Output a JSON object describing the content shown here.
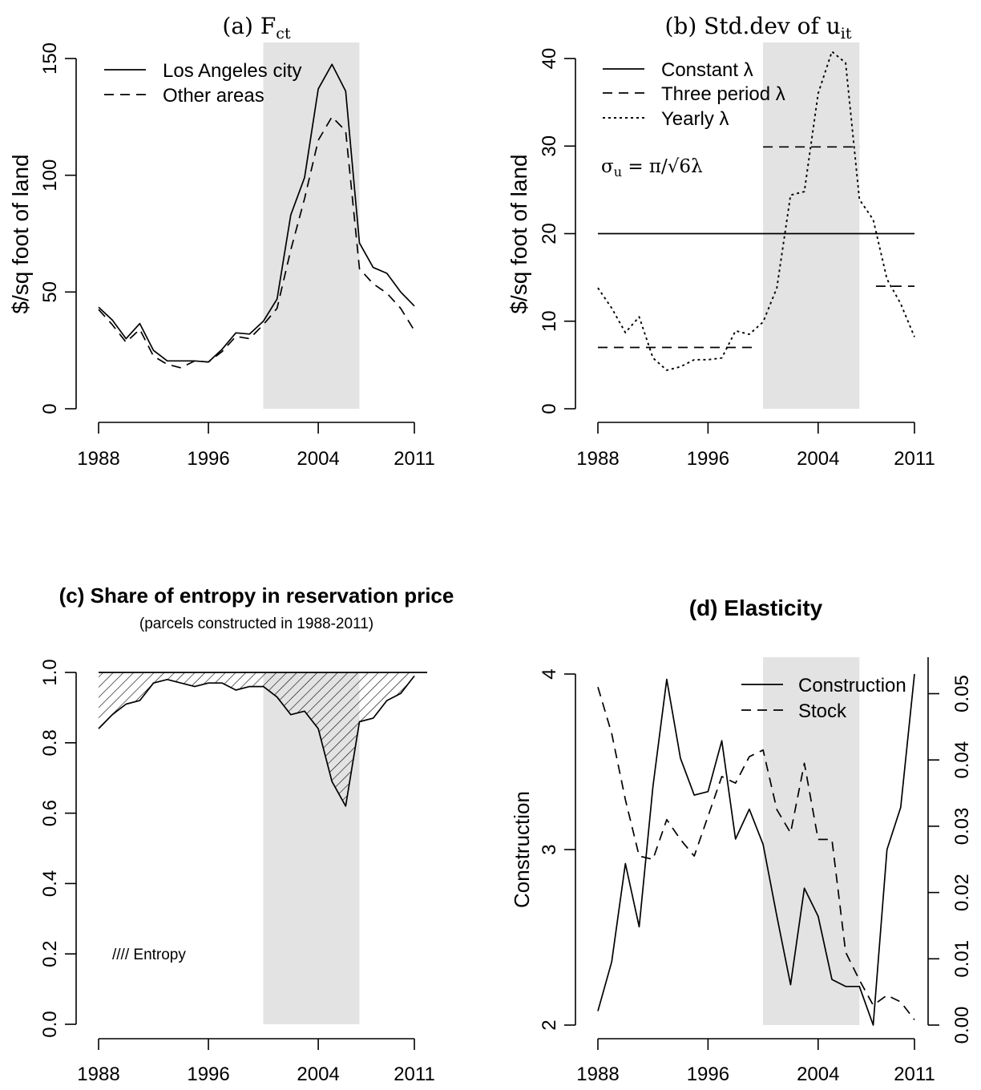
{
  "chart_data": [
    {
      "id": "a",
      "type": "line",
      "title": "(a) F",
      "title_sub": "ct",
      "ylabel": "$/sq foot of land",
      "xlabel": "",
      "xlim": [
        1988,
        2011
      ],
      "ylim": [
        0,
        150
      ],
      "yticks": [
        0,
        50,
        100,
        150
      ],
      "xticks": [
        1988,
        1996,
        2004,
        2011
      ],
      "x_tick_labels": [
        "1988",
        "1996",
        "2004",
        "2011"
      ],
      "y_tick_labels": [
        "0",
        "50",
        "100",
        "150"
      ],
      "shaded_period": [
        2000,
        2007
      ],
      "legend_position": "top-left",
      "x": [
        1988,
        1989,
        1990,
        1991,
        1992,
        1993,
        1994,
        1995,
        1996,
        1997,
        1998,
        1999,
        2000,
        2001,
        2002,
        2003,
        2004,
        2005,
        2006,
        2007,
        2008,
        2009,
        2010,
        2011
      ],
      "series": [
        {
          "name": "Los Angeles city",
          "style": "solid",
          "values": [
            43.5,
            38,
            30,
            36.5,
            25,
            20.5,
            20.5,
            20.5,
            20,
            25.5,
            32.5,
            32,
            37.5,
            47,
            83,
            99,
            137,
            147.5,
            136,
            71,
            60.5,
            58,
            50,
            44
          ]
        },
        {
          "name": "Other areas",
          "style": "dashed",
          "values": [
            42.5,
            36,
            28.5,
            34,
            22.5,
            19,
            17.5,
            20.5,
            20,
            24.5,
            31,
            30,
            36,
            43,
            68,
            90,
            115,
            125,
            119,
            60,
            53.5,
            49.5,
            43,
            33.5
          ]
        }
      ]
    },
    {
      "id": "b",
      "type": "line",
      "title": "(b) Std.dev of u",
      "title_sub": "it",
      "ylabel": "$/sq foot of land",
      "xlabel": "",
      "xlim": [
        1988,
        2011
      ],
      "ylim": [
        0,
        40
      ],
      "yticks": [
        0,
        10,
        20,
        30,
        40
      ],
      "xticks": [
        1988,
        1996,
        2004,
        2011
      ],
      "x_tick_labels": [
        "1988",
        "1996",
        "2004",
        "2011"
      ],
      "y_tick_labels": [
        "0",
        "10",
        "20",
        "30",
        "40"
      ],
      "shaded_period": [
        2000,
        2007
      ],
      "legend_position": "top-left",
      "annotation": {
        "sigma": "σ",
        "sub": "u",
        "rest": " = π/",
        "sqrt": "√6",
        "lambda": "λ"
      },
      "series": [
        {
          "name": "Constant λ",
          "style": "solid",
          "x": [
            1988,
            2011
          ],
          "values": [
            20,
            20
          ]
        },
        {
          "name": "Three period λ",
          "style": "dashed",
          "segments": [
            {
              "x": [
                1988,
                1999.5
              ],
              "values": [
                7,
                7
              ]
            },
            {
              "x": [
                2000,
                2007
              ],
              "values": [
                29.9,
                29.9
              ]
            },
            {
              "x": [
                2008.2,
                2011
              ],
              "values": [
                14,
                14
              ]
            }
          ]
        },
        {
          "name": "Yearly λ",
          "style": "dotted",
          "x": [
            1988,
            1989,
            1990,
            1991,
            1992,
            1993,
            1994,
            1995,
            1996,
            1997,
            1998,
            1999,
            2000,
            2001,
            2002,
            2003,
            2004,
            2005,
            2006,
            2007,
            2008,
            2009,
            2010,
            2011
          ],
          "values": [
            13.8,
            11.5,
            8.7,
            10.5,
            5.8,
            4.4,
            4.8,
            5.6,
            5.6,
            5.8,
            8.9,
            8.5,
            9.9,
            13.8,
            24.4,
            24.8,
            36,
            40.8,
            39.5,
            23.9,
            21.6,
            14.8,
            12,
            8.2
          ]
        }
      ]
    },
    {
      "id": "c",
      "type": "area",
      "title": "(c) Share of entropy in reservation price",
      "subtitle": "(parcels constructed in 1988-2011)",
      "ylabel": "",
      "xlabel": "",
      "xlim": [
        1988,
        2011
      ],
      "ylim": [
        0,
        1
      ],
      "yticks": [
        0,
        0.2,
        0.4,
        0.6,
        0.8,
        1.0
      ],
      "xticks": [
        1988,
        1996,
        2004,
        2011
      ],
      "x_tick_labels": [
        "1988",
        "1996",
        "2004",
        "2011"
      ],
      "y_tick_labels": [
        "0.0",
        "0.2",
        "0.4",
        "0.6",
        "0.8",
        "1.0"
      ],
      "shaded_period": [
        2000,
        2007
      ],
      "legend_text": "//// Entropy",
      "x": [
        1988,
        1989,
        1990,
        1991,
        1992,
        1993,
        1994,
        1995,
        1996,
        1997,
        1998,
        1999,
        2000,
        2001,
        2002,
        2003,
        2004,
        2005,
        2006,
        2007,
        2008,
        2009,
        2010,
        2011
      ],
      "values": [
        0.84,
        0.88,
        0.91,
        0.92,
        0.97,
        0.98,
        0.97,
        0.96,
        0.97,
        0.97,
        0.95,
        0.96,
        0.96,
        0.93,
        0.88,
        0.89,
        0.84,
        0.69,
        0.62,
        0.86,
        0.87,
        0.92,
        0.94,
        0.99
      ],
      "upper": 1.0
    },
    {
      "id": "d",
      "type": "line",
      "title": "(d) Elasticity",
      "ylabel": "Construction",
      "xlabel": "",
      "xlim": [
        1988,
        2011
      ],
      "ylim": [
        2,
        4
      ],
      "yticks": [
        2,
        3,
        4
      ],
      "y_tick_labels": [
        "2",
        "3",
        "4"
      ],
      "y2lim": [
        0,
        0.0555
      ],
      "y2ticks": [
        0,
        0.01,
        0.02,
        0.03,
        0.04,
        0.05
      ],
      "y2_tick_labels": [
        "0.00",
        "0.01",
        "0.02",
        "0.03",
        "0.04",
        "0.05"
      ],
      "xticks": [
        1988,
        1996,
        2004,
        2011
      ],
      "x_tick_labels": [
        "1988",
        "1996",
        "2004",
        "2011"
      ],
      "shaded_period": [
        2000,
        2007
      ],
      "legend_position": "top-right",
      "x": [
        1988,
        1989,
        1990,
        1991,
        1992,
        1993,
        1994,
        1995,
        1996,
        1997,
        1998,
        1999,
        2000,
        2001,
        2002,
        2003,
        2004,
        2005,
        2006,
        2007,
        2008,
        2009,
        2010,
        2011
      ],
      "series": [
        {
          "name": "Construction",
          "style": "solid",
          "axis": "left",
          "values": [
            2.08,
            2.36,
            2.92,
            2.56,
            3.36,
            3.97,
            3.52,
            3.31,
            3.33,
            3.62,
            3.06,
            3.23,
            3.03,
            2.62,
            2.23,
            2.78,
            2.62,
            2.26,
            2.22,
            2.22,
            2.0,
            3.0,
            3.24,
            4.0
          ]
        },
        {
          "name": "Stock",
          "style": "dashed",
          "axis": "right",
          "values": [
            0.051,
            0.044,
            0.034,
            0.0255,
            0.025,
            0.031,
            0.028,
            0.0255,
            0.0315,
            0.0375,
            0.0365,
            0.0405,
            0.0415,
            0.0325,
            0.029,
            0.0395,
            0.028,
            0.028,
            0.011,
            0.0068,
            0.003,
            0.0045,
            0.0035,
            0.0008
          ]
        }
      ]
    }
  ]
}
